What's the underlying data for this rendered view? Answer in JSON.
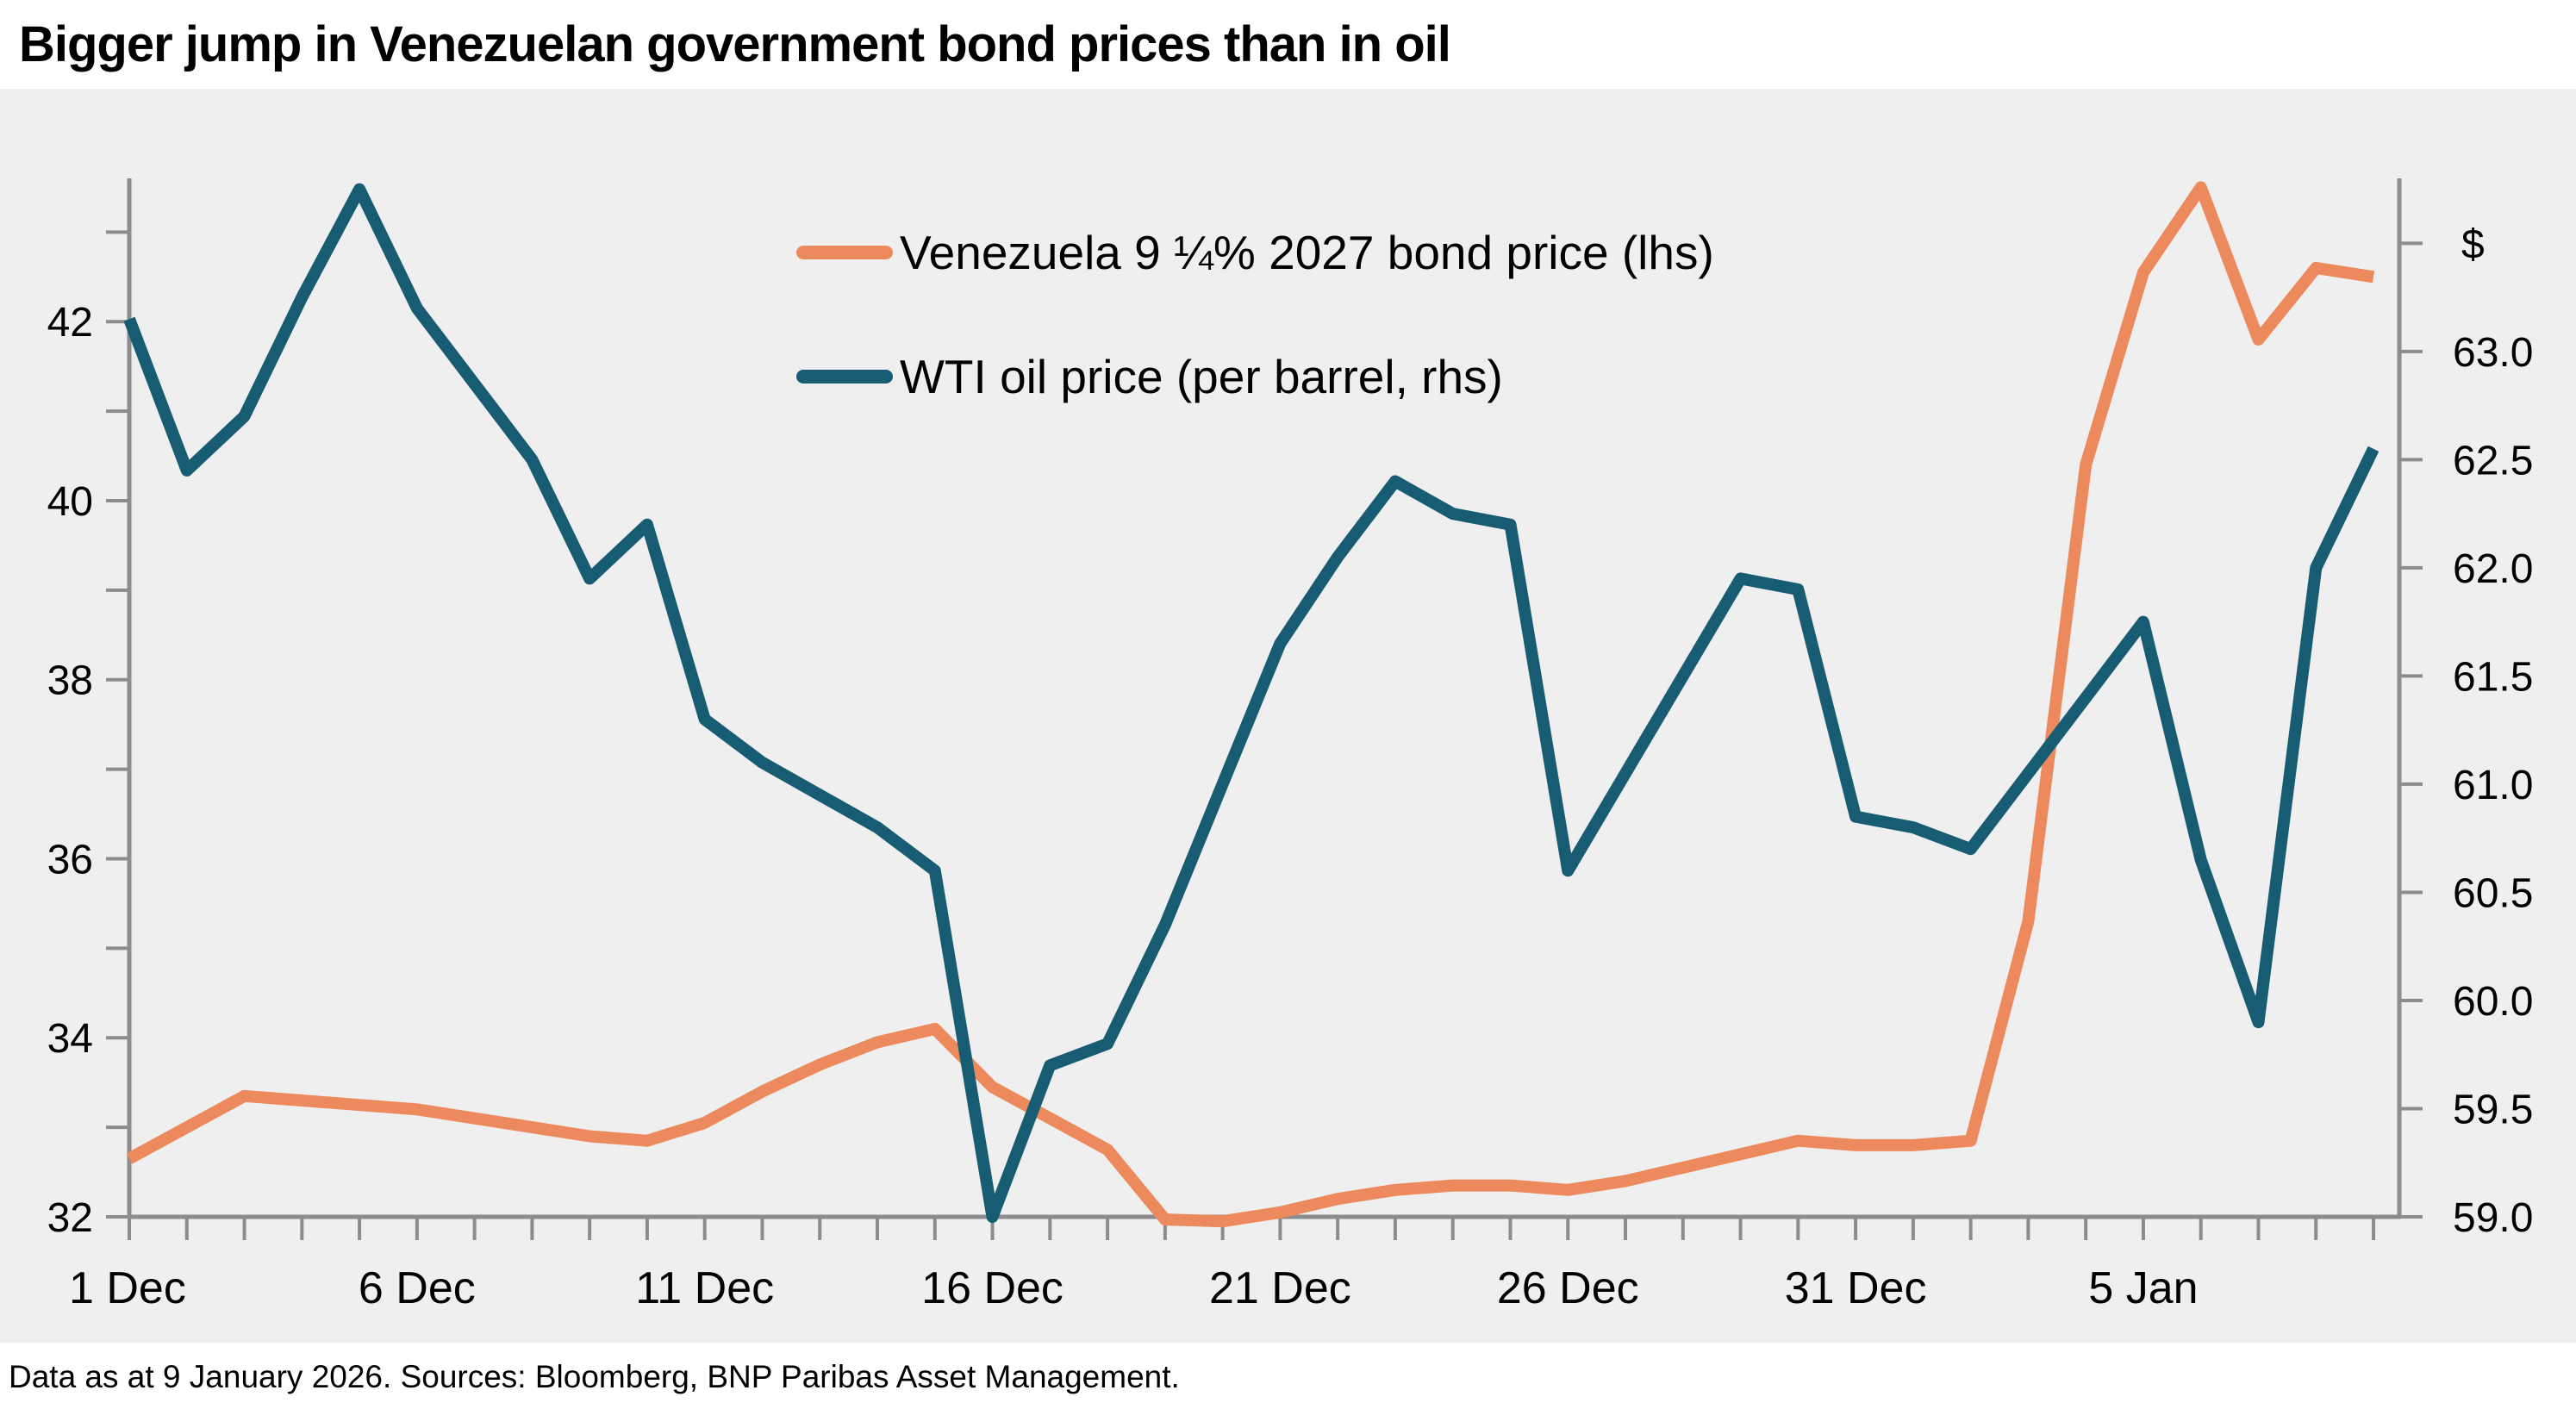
{
  "header": {
    "title": "Bigger jump in Venezuelan government bond prices than in oil"
  },
  "footer": {
    "note": "Data as at 9 January 2026. Sources: Bloomberg, BNP Paribas Asset Management."
  },
  "colors": {
    "bond_line": "#EC8A5D",
    "wti_line": "#175C72",
    "axis": "#8C8C8C",
    "plot_background": "#F0EFEF",
    "page_background": "#FFFFFF",
    "text": "#000000"
  },
  "chart_data": {
    "type": "line",
    "title": "Bigger jump in Venezuelan government bond prices than in oil",
    "grid": "off",
    "legend_position": "top-center-inside",
    "x": [
      "1 Dec",
      "2 Dec",
      "3 Dec",
      "4 Dec",
      "5 Dec",
      "6 Dec",
      "7 Dec",
      "8 Dec",
      "9 Dec",
      "10 Dec",
      "11 Dec",
      "12 Dec",
      "13 Dec",
      "14 Dec",
      "15 Dec",
      "16 Dec",
      "17 Dec",
      "18 Dec",
      "19 Dec",
      "20 Dec",
      "21 Dec",
      "22 Dec",
      "23 Dec",
      "24 Dec",
      "25 Dec",
      "26 Dec",
      "27 Dec",
      "28 Dec",
      "29 Dec",
      "30 Dec",
      "31 Dec",
      "1 Jan",
      "2 Jan",
      "3 Jan",
      "4 Jan",
      "5 Jan",
      "6 Jan",
      "7 Jan",
      "8 Jan",
      "9 Jan"
    ],
    "x_tick_labels": [
      {
        "index": 0,
        "label": "1 Dec"
      },
      {
        "index": 5,
        "label": "6 Dec"
      },
      {
        "index": 10,
        "label": "11 Dec"
      },
      {
        "index": 15,
        "label": "16 Dec"
      },
      {
        "index": 20,
        "label": "21 Dec"
      },
      {
        "index": 25,
        "label": "26 Dec"
      },
      {
        "index": 30,
        "label": "31 Dec"
      },
      {
        "index": 35,
        "label": "5 Jan"
      }
    ],
    "left_axis": {
      "side": "left",
      "min": 32,
      "max": 43.6,
      "tick_min": 32,
      "tick_max": 43,
      "tick_step": 1,
      "labeled_ticks": [
        32,
        34,
        36,
        38,
        40,
        42
      ]
    },
    "right_axis": {
      "side": "right",
      "min": 59,
      "max": 63.8,
      "tick_min": 59,
      "tick_max": 63.5,
      "tick_step": 0.5,
      "unit_symbol": "$",
      "labeled_ticks": [
        59.0,
        59.5,
        60.0,
        60.5,
        61.0,
        61.5,
        62.0,
        62.5,
        63.0,
        63.5
      ],
      "tick_label_overrides": {
        "63.5": "$"
      }
    },
    "series": [
      {
        "name": "Venezuela 9 ¼% 2027 bond price (lhs)",
        "axis": "left",
        "color": "#EC8A5D",
        "values": [
          32.65,
          33.0,
          33.35,
          33.3,
          33.25,
          33.2,
          33.1,
          33.0,
          32.9,
          32.85,
          33.05,
          33.4,
          33.7,
          33.95,
          34.1,
          33.45,
          33.1,
          32.75,
          31.97,
          31.95,
          32.05,
          32.2,
          32.3,
          32.35,
          32.35,
          32.3,
          32.4,
          32.55,
          32.7,
          32.85,
          32.8,
          32.8,
          32.85,
          35.3,
          40.4,
          42.55,
          43.5,
          41.8,
          42.6,
          42.5
        ]
      },
      {
        "name": "WTI oil price (per barrel, rhs)",
        "axis": "right",
        "color": "#175C72",
        "values": [
          63.15,
          62.45,
          62.7,
          63.25,
          63.75,
          63.2,
          62.85,
          62.5,
          61.95,
          62.2,
          61.3,
          61.1,
          60.95,
          60.8,
          60.6,
          59.0,
          59.7,
          59.8,
          60.35,
          61.0,
          61.65,
          62.05,
          62.4,
          62.25,
          62.2,
          60.6,
          61.05,
          61.5,
          61.95,
          61.9,
          60.85,
          60.8,
          60.7,
          61.05,
          61.4,
          61.75,
          60.65,
          59.9,
          62.0,
          62.55
        ]
      }
    ]
  }
}
